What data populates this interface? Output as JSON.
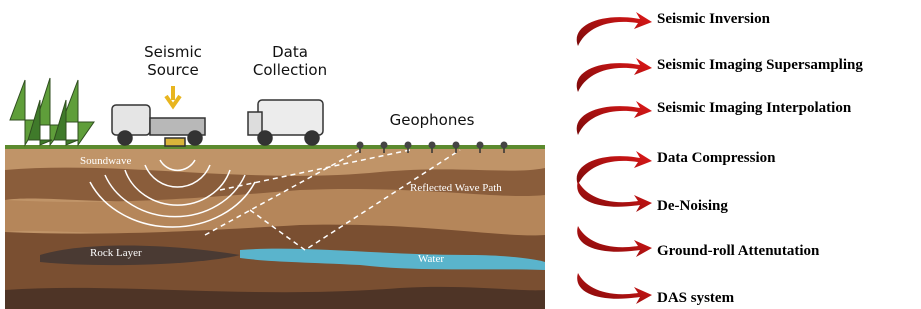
{
  "illustration": {
    "seismic_source": [
      "Seismic",
      "Source"
    ],
    "data_collection": [
      "Data",
      "Collection"
    ],
    "geophones": "Geophones",
    "soundwave": "Soundwave",
    "reflected_wave_path": "Reflected Wave Path",
    "rock_layer": "Rock Layer",
    "water": "Water"
  },
  "applications": [
    "Seismic Inversion",
    "Seismic Imaging Supersampling",
    "Seismic Imaging Interpolation",
    "Data Compression",
    "De-Noising",
    "Ground-roll Attenutation",
    "DAS system"
  ]
}
